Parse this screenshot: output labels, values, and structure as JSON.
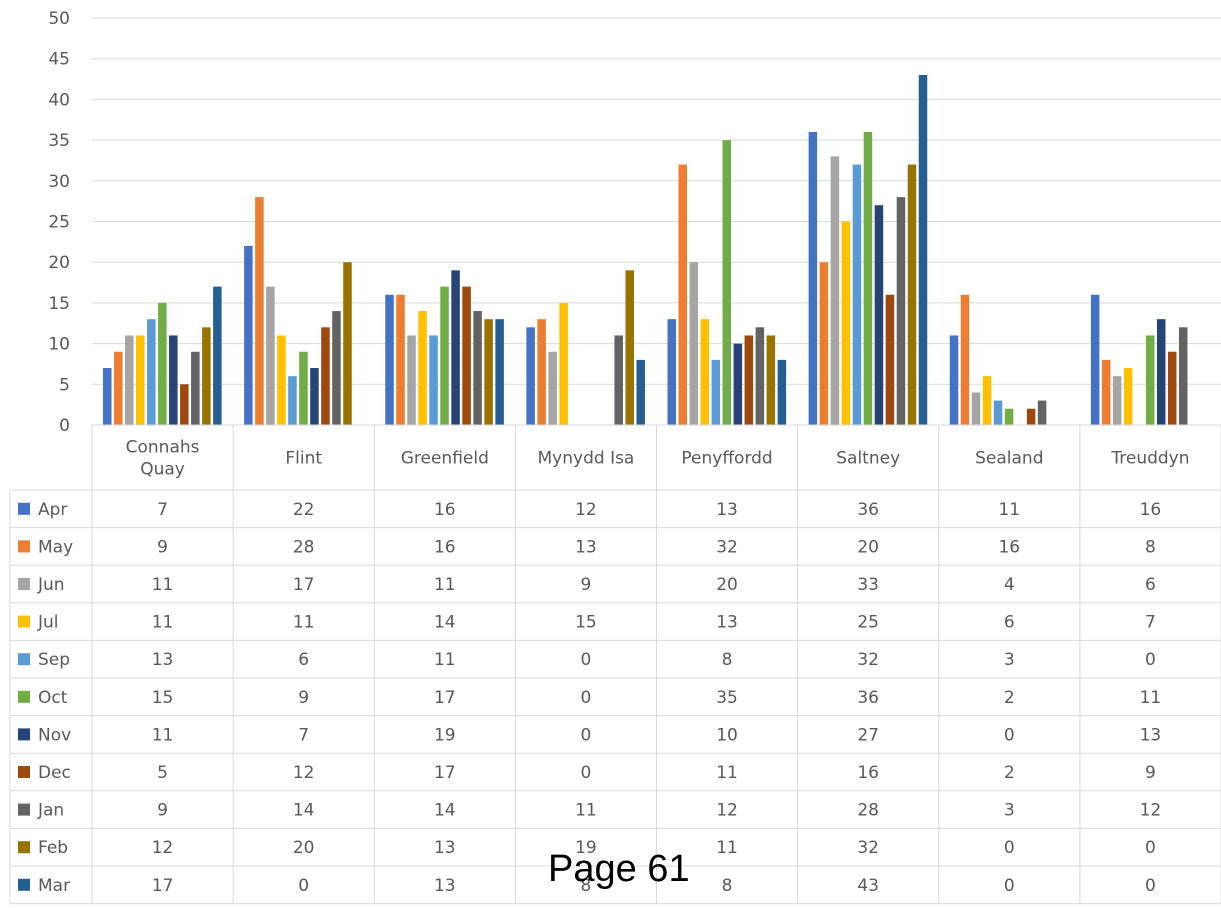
{
  "chart_data": {
    "type": "bar",
    "categories": [
      [
        "Connahs",
        "Quay"
      ],
      [
        "Flint"
      ],
      [
        "Greenfield"
      ],
      [
        "Mynydd Isa"
      ],
      [
        "Penyffordd"
      ],
      [
        "Saltney"
      ],
      [
        "Sealand"
      ],
      [
        "Treuddyn"
      ]
    ],
    "ylim": [
      0,
      50
    ],
    "yticks": [
      0,
      5,
      10,
      15,
      20,
      25,
      30,
      35,
      40,
      45,
      50
    ],
    "grid": true,
    "legend": "data-table-left",
    "series": [
      {
        "name": "Apr",
        "color": "#4472C4",
        "values": [
          7,
          22,
          16,
          12,
          13,
          36,
          11,
          16
        ]
      },
      {
        "name": "May",
        "color": "#ED7D31",
        "values": [
          9,
          28,
          16,
          13,
          32,
          20,
          16,
          8
        ]
      },
      {
        "name": "Jun",
        "color": "#A5A5A5",
        "values": [
          11,
          17,
          11,
          9,
          20,
          33,
          4,
          6
        ]
      },
      {
        "name": "Jul",
        "color": "#FFC000",
        "values": [
          11,
          11,
          14,
          15,
          13,
          25,
          6,
          7
        ]
      },
      {
        "name": "Sep",
        "color": "#5B9BD5",
        "values": [
          13,
          6,
          11,
          0,
          8,
          32,
          3,
          0
        ]
      },
      {
        "name": "Oct",
        "color": "#70AD47",
        "values": [
          15,
          9,
          17,
          0,
          35,
          36,
          2,
          11
        ]
      },
      {
        "name": "Nov",
        "color": "#264478",
        "values": [
          11,
          7,
          19,
          0,
          10,
          27,
          0,
          13
        ]
      },
      {
        "name": "Dec",
        "color": "#9E480E",
        "values": [
          5,
          12,
          17,
          0,
          11,
          16,
          2,
          9
        ]
      },
      {
        "name": "Jan",
        "color": "#636363",
        "values": [
          9,
          14,
          14,
          11,
          12,
          28,
          3,
          12
        ]
      },
      {
        "name": "Feb",
        "color": "#997300",
        "values": [
          12,
          20,
          13,
          19,
          11,
          32,
          0,
          0
        ]
      },
      {
        "name": "Mar",
        "color": "#255E91",
        "values": [
          17,
          0,
          13,
          8,
          8,
          43,
          0,
          0
        ]
      }
    ]
  },
  "footer": {
    "page_label": "Page 61"
  }
}
